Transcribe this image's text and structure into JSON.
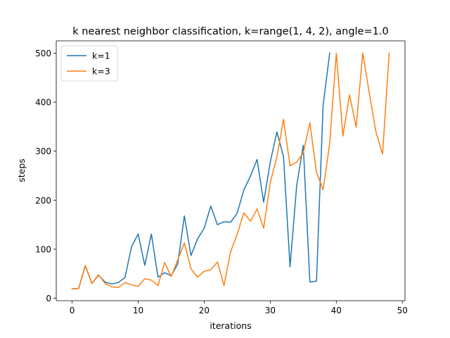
{
  "chart_data": {
    "type": "line",
    "title": "k nearest neighbor classification, k=range(1, 4, 2), angle=1.0",
    "xlabel": "iterations",
    "ylabel": "steps",
    "xlim": [
      -2.4,
      50.4
    ],
    "ylim": [
      -5,
      525
    ],
    "xticks": [
      0,
      10,
      20,
      30,
      40,
      50
    ],
    "yticks": [
      0,
      100,
      200,
      300,
      400,
      500
    ],
    "grid": false,
    "legend": {
      "position": "top-left"
    },
    "series": [
      {
        "name": "k=1",
        "color": "#1f77b4",
        "x": [
          0,
          1,
          2,
          3,
          4,
          5,
          6,
          7,
          8,
          9,
          10,
          11,
          12,
          13,
          14,
          15,
          16,
          17,
          18,
          19,
          20,
          21,
          22,
          23,
          24,
          25,
          26,
          27,
          28,
          29,
          30,
          31,
          32,
          33,
          34,
          35,
          36,
          37,
          38,
          39
        ],
        "y": [
          19,
          20,
          66,
          30,
          47,
          33,
          29,
          32,
          42,
          105,
          131,
          67,
          131,
          43,
          52,
          46,
          70,
          168,
          87,
          121,
          143,
          188,
          150,
          156,
          155,
          174,
          221,
          249,
          283,
          196,
          278,
          339,
          289,
          64,
          229,
          312,
          33,
          35,
          393,
          500
        ]
      },
      {
        "name": "k=3",
        "color": "#ff7f0e",
        "x": [
          0,
          1,
          2,
          3,
          4,
          5,
          6,
          7,
          8,
          9,
          10,
          11,
          12,
          13,
          14,
          15,
          16,
          17,
          18,
          19,
          20,
          21,
          22,
          23,
          24,
          25,
          26,
          27,
          28,
          29,
          30,
          31,
          32,
          33,
          34,
          35,
          36,
          37,
          38,
          39,
          40,
          41,
          42,
          43,
          44,
          45,
          46,
          47,
          48
        ],
        "y": [
          19,
          20,
          67,
          30,
          48,
          30,
          23,
          22,
          32,
          27,
          24,
          40,
          37,
          26,
          73,
          44,
          78,
          113,
          60,
          43,
          55,
          58,
          74,
          26,
          95,
          131,
          174,
          157,
          182,
          143,
          236,
          288,
          365,
          270,
          278,
          296,
          358,
          257,
          221,
          316,
          500,
          331,
          415,
          349,
          500,
          418,
          339,
          294,
          500
        ]
      }
    ]
  }
}
